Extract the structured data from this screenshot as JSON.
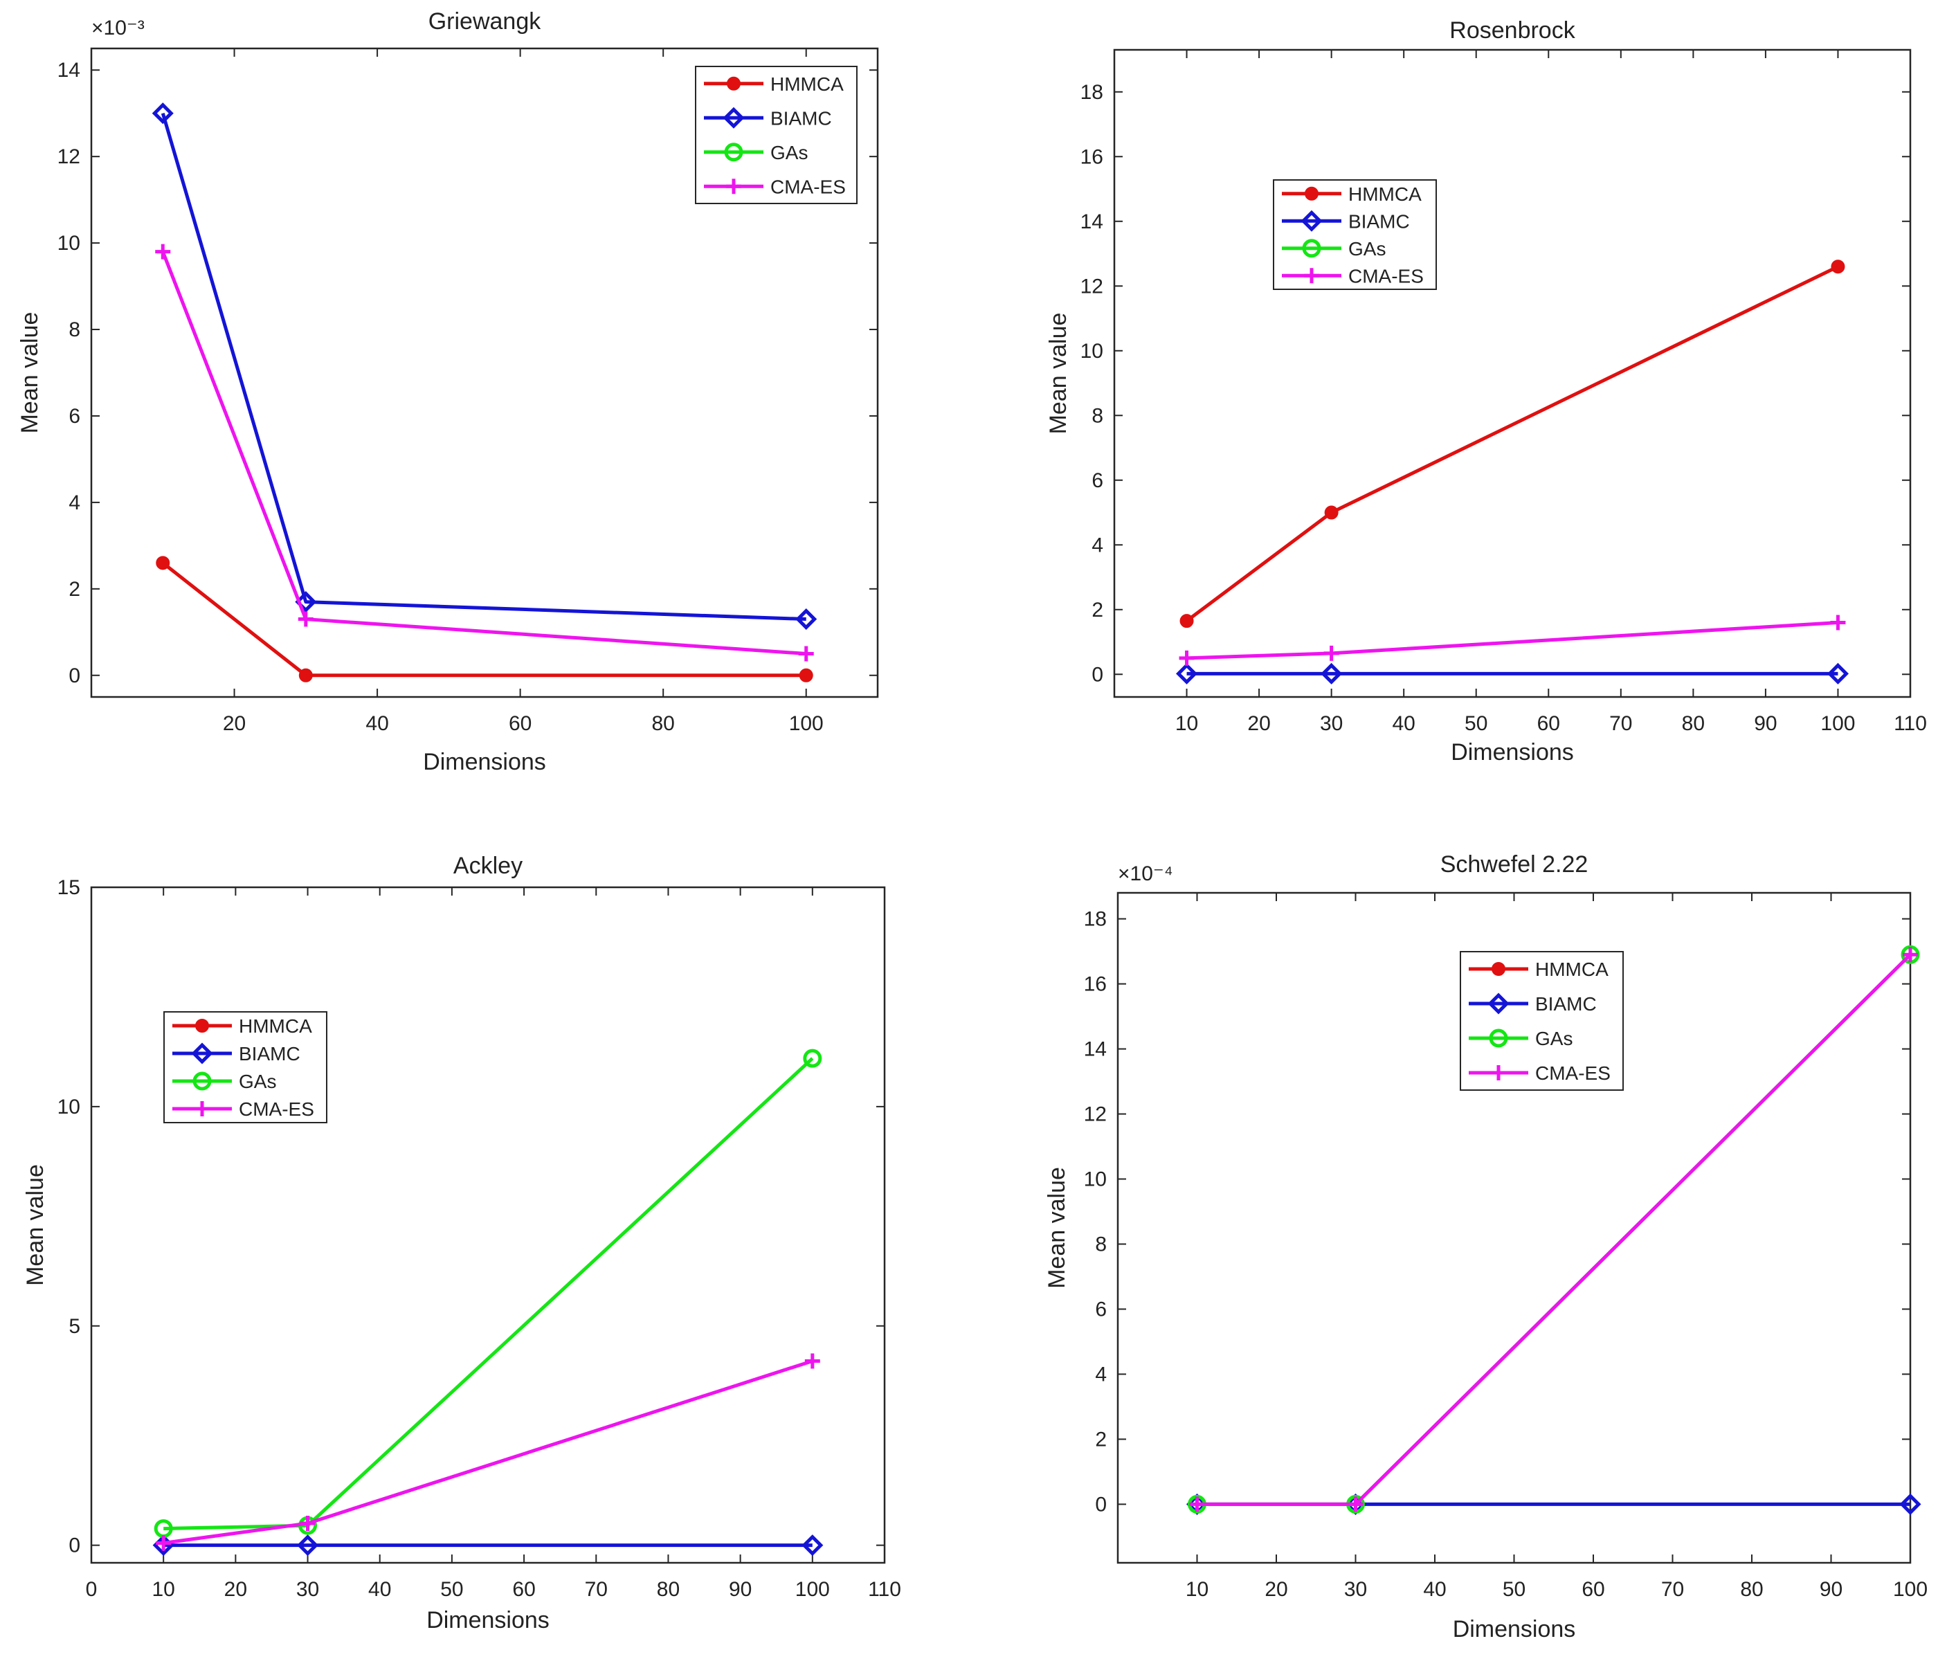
{
  "chart_data": [
    {
      "type": "line",
      "title": "Griewangk",
      "xlabel": "Dimensions",
      "ylabel": "Mean value",
      "multiplier": "×10⁻³",
      "xlim": [
        0,
        110
      ],
      "ylim": [
        -0.5,
        14.5
      ],
      "xticks": [
        "20",
        "40",
        "60",
        "80",
        "100"
      ],
      "xtick_values": [
        20,
        40,
        60,
        80,
        100
      ],
      "yticks": [
        "0",
        "2",
        "4",
        "6",
        "8",
        "10",
        "12",
        "14"
      ],
      "ytick_values": [
        0,
        2,
        4,
        6,
        8,
        10,
        12,
        14
      ],
      "x": [
        10,
        30,
        100
      ],
      "legend_position": "top-right",
      "series": [
        {
          "name": "HMMCA",
          "values": [
            2.6,
            0.0,
            0.0
          ],
          "color": "#e01010",
          "marker": "dot"
        },
        {
          "name": "BIAMC",
          "values": [
            13.0,
            1.7,
            1.3
          ],
          "color": "#1414d6",
          "marker": "diamond"
        },
        {
          "name": "GAs",
          "values": [
            null,
            null,
            null
          ],
          "color": "#14e614",
          "marker": "circle"
        },
        {
          "name": "CMA-ES",
          "values": [
            9.8,
            1.3,
            0.5
          ],
          "color": "#ee14ee",
          "marker": "plus"
        }
      ]
    },
    {
      "type": "line",
      "title": "Rosenbrock",
      "xlabel": "Dimensions",
      "ylabel": "Mean value",
      "multiplier": "",
      "xlim": [
        0,
        110
      ],
      "ylim": [
        -0.7,
        19.3
      ],
      "xticks": [
        "10",
        "20",
        "30",
        "40",
        "50",
        "60",
        "70",
        "80",
        "90",
        "100",
        "110"
      ],
      "xtick_values": [
        10,
        20,
        30,
        40,
        50,
        60,
        70,
        80,
        90,
        100,
        110
      ],
      "yticks": [
        "0",
        "2",
        "4",
        "6",
        "8",
        "10",
        "12",
        "14",
        "16",
        "18"
      ],
      "ytick_values": [
        0,
        2,
        4,
        6,
        8,
        10,
        12,
        14,
        16,
        18
      ],
      "x": [
        10,
        30,
        100
      ],
      "legend_position": "upper-left",
      "series": [
        {
          "name": "HMMCA",
          "values": [
            1.65,
            5.0,
            12.6
          ],
          "color": "#e01010",
          "marker": "dot"
        },
        {
          "name": "BIAMC",
          "values": [
            0.02,
            0.02,
            0.02
          ],
          "color": "#1414d6",
          "marker": "diamond"
        },
        {
          "name": "GAs",
          "values": [
            null,
            null,
            null
          ],
          "color": "#14e614",
          "marker": "circle"
        },
        {
          "name": "CMA-ES",
          "values": [
            0.5,
            0.65,
            1.6
          ],
          "color": "#ee14ee",
          "marker": "plus"
        }
      ]
    },
    {
      "type": "line",
      "title": "Ackley",
      "xlabel": "Dimensions",
      "ylabel": "Mean value",
      "multiplier": "",
      "xlim": [
        0,
        110
      ],
      "ylim": [
        -0.4,
        15
      ],
      "xticks": [
        "0",
        "10",
        "20",
        "30",
        "40",
        "50",
        "60",
        "70",
        "80",
        "90",
        "100",
        "110"
      ],
      "xtick_values": [
        0,
        10,
        20,
        30,
        40,
        50,
        60,
        70,
        80,
        90,
        100,
        110
      ],
      "yticks": [
        "0",
        "5",
        "10",
        "15"
      ],
      "ytick_values": [
        0,
        5,
        10,
        15
      ],
      "x": [
        10,
        30,
        100
      ],
      "legend_position": "middle-left",
      "series": [
        {
          "name": "HMMCA",
          "values": [
            null,
            null,
            null
          ],
          "color": "#e01010",
          "marker": "dot"
        },
        {
          "name": "BIAMC",
          "values": [
            0.0,
            0.0,
            0.0
          ],
          "color": "#1414d6",
          "marker": "diamond"
        },
        {
          "name": "GAs",
          "values": [
            0.38,
            0.45,
            11.1
          ],
          "color": "#14e614",
          "marker": "circle"
        },
        {
          "name": "CMA-ES",
          "values": [
            0.05,
            0.5,
            4.2
          ],
          "color": "#ee14ee",
          "marker": "plus"
        }
      ]
    },
    {
      "type": "line",
      "title": "Schwefel 2.22",
      "xlabel": "Dimensions",
      "ylabel": "Mean value",
      "multiplier": "×10⁻⁴",
      "xlim": [
        0,
        100
      ],
      "ylim": [
        -1.8,
        18.8
      ],
      "xticks": [
        "10",
        "20",
        "30",
        "40",
        "50",
        "60",
        "70",
        "80",
        "90",
        "100"
      ],
      "xtick_values": [
        10,
        20,
        30,
        40,
        50,
        60,
        70,
        80,
        90,
        100
      ],
      "yticks": [
        "0",
        "2",
        "4",
        "6",
        "8",
        "10",
        "12",
        "14",
        "16",
        "18"
      ],
      "ytick_values": [
        0,
        2,
        4,
        6,
        8,
        10,
        12,
        14,
        16,
        18
      ],
      "x": [
        10,
        30,
        100
      ],
      "legend_position": "top-center",
      "series": [
        {
          "name": "HMMCA",
          "values": [
            null,
            null,
            null
          ],
          "color": "#e01010",
          "marker": "dot"
        },
        {
          "name": "BIAMC",
          "values": [
            0.0,
            0.0,
            0.0
          ],
          "color": "#1414d6",
          "marker": "diamond"
        },
        {
          "name": "GAs",
          "values": [
            0.0,
            0.0,
            16.9
          ],
          "color": "#14e614",
          "marker": "circle"
        },
        {
          "name": "CMA-ES",
          "values": [
            0.0,
            0.0,
            16.9
          ],
          "color": "#ee14ee",
          "marker": "plus"
        }
      ]
    }
  ]
}
